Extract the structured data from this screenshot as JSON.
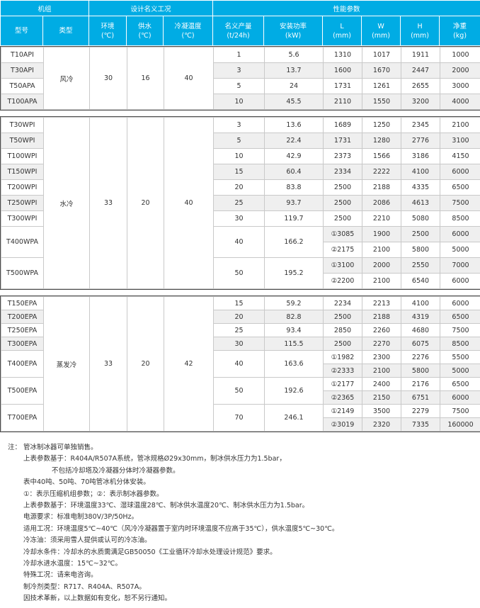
{
  "colors": {
    "header_bg": "#00ACE4",
    "stripe": "#efefef",
    "block_border": "#4d4d4d",
    "cell_border": "#c9c9c9",
    "text": "#333333"
  },
  "table": {
    "header_groups": [
      {
        "label": "机组",
        "span": 2
      },
      {
        "label": "设计名义工况",
        "span": 3
      },
      {
        "label": "性能参数",
        "span": 6
      }
    ],
    "columns": [
      {
        "line1": "型号",
        "line2": ""
      },
      {
        "line1": "类型",
        "line2": ""
      },
      {
        "line1": "环境",
        "line2": "(℃)"
      },
      {
        "line1": "供水",
        "line2": "(℃)"
      },
      {
        "line1": "冷凝温度",
        "line2": "(℃)"
      },
      {
        "line1": "名义产量",
        "line2": "(t/24h)"
      },
      {
        "line1": "安装功率",
        "line2": "(kW)"
      },
      {
        "line1": "L",
        "line2": "(mm)"
      },
      {
        "line1": "W",
        "line2": "(mm)"
      },
      {
        "line1": "H",
        "line2": "(mm)"
      },
      {
        "line1": "净重",
        "line2": "(kg)"
      }
    ],
    "blocks": [
      {
        "type": "风冷",
        "ambient": "30",
        "water": "16",
        "cond": "40",
        "models": [
          {
            "model": "T10API",
            "cap": "1",
            "power": "5.6",
            "rows": [
              [
                "1310",
                "1017",
                "1911",
                "1000"
              ]
            ]
          },
          {
            "model": "T30API",
            "cap": "3",
            "power": "13.7",
            "rows": [
              [
                "1600",
                "1670",
                "2447",
                "2000"
              ]
            ]
          },
          {
            "model": "T50APA",
            "cap": "5",
            "power": "24",
            "rows": [
              [
                "1731",
                "1261",
                "2655",
                "3000"
              ]
            ]
          },
          {
            "model": "T100APA",
            "cap": "10",
            "power": "45.5",
            "rows": [
              [
                "2110",
                "1550",
                "3200",
                "4000"
              ]
            ]
          }
        ]
      },
      {
        "type": "水冷",
        "ambient": "33",
        "water": "20",
        "cond": "40",
        "models": [
          {
            "model": "T30WPI",
            "cap": "3",
            "power": "13.6",
            "rows": [
              [
                "1689",
                "1250",
                "2345",
                "2100"
              ]
            ]
          },
          {
            "model": "T50WPI",
            "cap": "5",
            "power": "22.4",
            "rows": [
              [
                "1731",
                "1280",
                "2776",
                "3100"
              ]
            ]
          },
          {
            "model": "T100WPI",
            "cap": "10",
            "power": "42.9",
            "rows": [
              [
                "2373",
                "1566",
                "3186",
                "4150"
              ]
            ]
          },
          {
            "model": "T150WPI",
            "cap": "15",
            "power": "60.4",
            "rows": [
              [
                "2334",
                "2222",
                "4100",
                "6000"
              ]
            ]
          },
          {
            "model": "T200WPI",
            "cap": "20",
            "power": "83.8",
            "rows": [
              [
                "2500",
                "2188",
                "4335",
                "6500"
              ]
            ]
          },
          {
            "model": "T250WPI",
            "cap": "25",
            "power": "93.7",
            "rows": [
              [
                "2500",
                "2086",
                "4613",
                "7500"
              ]
            ]
          },
          {
            "model": "T300WPI",
            "cap": "30",
            "power": "119.7",
            "rows": [
              [
                "2500",
                "2210",
                "5080",
                "8500"
              ]
            ]
          },
          {
            "model": "T400WPA",
            "cap": "40",
            "power": "166.2",
            "rows": [
              [
                "①3085",
                "1900",
                "2500",
                "6000"
              ],
              [
                "②2175",
                "2100",
                "5800",
                "5000"
              ]
            ]
          },
          {
            "model": "T500WPA",
            "cap": "50",
            "power": "195.2",
            "rows": [
              [
                "①3100",
                "2000",
                "2550",
                "7000"
              ],
              [
                "②2200",
                "2100",
                "6540",
                "6000"
              ]
            ]
          }
        ]
      },
      {
        "type": "蒸发冷",
        "ambient": "33",
        "water": "20",
        "cond": "42",
        "models": [
          {
            "model": "T150EPA",
            "cap": "15",
            "power": "59.2",
            "rows": [
              [
                "2234",
                "2213",
                "4100",
                "6000"
              ]
            ]
          },
          {
            "model": "T200EPA",
            "cap": "20",
            "power": "82.8",
            "rows": [
              [
                "2500",
                "2188",
                "4319",
                "6500"
              ]
            ]
          },
          {
            "model": "T250EPA",
            "cap": "25",
            "power": "93.4",
            "rows": [
              [
                "2850",
                "2260",
                "4680",
                "7500"
              ]
            ]
          },
          {
            "model": "T300EPA",
            "cap": "30",
            "power": "115.5",
            "rows": [
              [
                "2500",
                "2270",
                "6075",
                "8500"
              ]
            ]
          },
          {
            "model": "T400EPA",
            "cap": "40",
            "power": "163.6",
            "rows": [
              [
                "①1982",
                "2300",
                "2276",
                "5500"
              ],
              [
                "②2333",
                "2100",
                "5800",
                "5000"
              ]
            ]
          },
          {
            "model": "T500EPA",
            "cap": "50",
            "power": "192.6",
            "rows": [
              [
                "①2177",
                "2400",
                "2176",
                "6500"
              ],
              [
                "②2365",
                "2150",
                "6751",
                "6000"
              ]
            ]
          },
          {
            "model": "T700EPA",
            "cap": "70",
            "power": "246.1",
            "rows": [
              [
                "①2149",
                "3500",
                "2279",
                "7500"
              ],
              [
                "②3019",
                "2320",
                "7335",
                "160000"
              ]
            ]
          }
        ]
      }
    ]
  },
  "notes": {
    "label": "注：",
    "lines": [
      {
        "text": "管冰制冰器可单独销售。",
        "indent": 0
      },
      {
        "text": "上表参数基于：R404A/R507A系统，管冰规格Ø29x30mm，制冰供水压力为1.5bar，",
        "indent": 0
      },
      {
        "text": "不包括冷却塔及冷凝器分体时冷凝器参数。",
        "indent": 1
      },
      {
        "text": "表中40吨、50吨、70吨管冰机分体安装。",
        "indent": 0
      },
      {
        "text": "①：表示压缩机组参数；②：表示制冰器参数。",
        "indent": 0
      },
      {
        "text": "上表参数基于：环境温度33℃、湿球温度28℃、制冰供水温度20℃、制冰供水压力为1.5bar。",
        "indent": 0
      },
      {
        "text": "电源要求：标准电制380V/3P/50Hz。",
        "indent": 0
      },
      {
        "text": "适用工况：环境温度5℃~40℃（风冷冷凝器置于室内时环境温度不应高于35℃），供水温度5℃~30℃。",
        "indent": 0
      },
      {
        "text": "冷冻油：须采用雪人提供或认可的冷冻油。",
        "indent": 0
      },
      {
        "text": "冷却水条件：冷却水的水质需满足GB50050《工业循环冷却水处理设计规范》要求。",
        "indent": 0
      },
      {
        "text": "冷却水进水温度：15℃~32℃。",
        "indent": 0
      },
      {
        "text": "特殊工况：请来电咨询。",
        "indent": 0
      },
      {
        "text": "制冷剂类型：R717、R404A、R507A。",
        "indent": 0
      },
      {
        "text": "因技术革新，以上数据如有变化，恕不另行通知。",
        "indent": 0
      }
    ]
  }
}
